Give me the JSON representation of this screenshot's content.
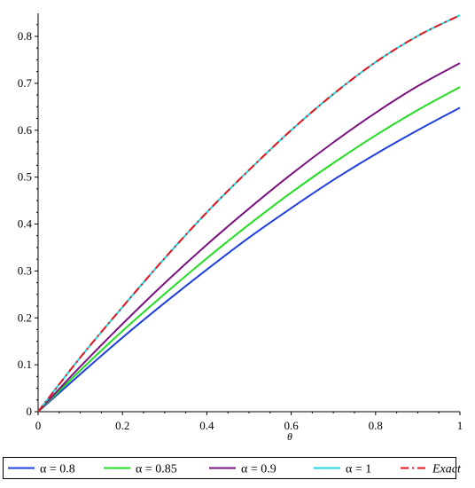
{
  "chart_data": {
    "type": "line",
    "xlabel": "θ",
    "ylabel": "",
    "xlim": [
      0,
      1
    ],
    "ylim": [
      0,
      0.85
    ],
    "x_ticks": [
      "0",
      "0.2",
      "0.4",
      "0.6",
      "0.8",
      "1"
    ],
    "y_ticks": [
      "0",
      "0.1",
      "0.2",
      "0.3",
      "0.4",
      "0.5",
      "0.6",
      "0.7",
      "0.8"
    ],
    "grid": false,
    "legend_position": "bottom",
    "x": [
      0,
      0.1,
      0.2,
      0.3,
      0.4,
      0.5,
      0.6,
      0.7,
      0.8,
      0.9,
      1.0
    ],
    "series": [
      {
        "name": "α = 0.8",
        "color": "#1f3fdf",
        "dash": "solid",
        "italic": false,
        "values": [
          0,
          0.08,
          0.158,
          0.232,
          0.303,
          0.371,
          0.434,
          0.494,
          0.549,
          0.6,
          0.648
        ]
      },
      {
        "name": "α = 0.85",
        "color": "#22dd22",
        "dash": "solid",
        "italic": false,
        "values": [
          0,
          0.088,
          0.172,
          0.251,
          0.327,
          0.399,
          0.467,
          0.53,
          0.589,
          0.643,
          0.692
        ]
      },
      {
        "name": "α = 0.9",
        "color": "#7a1380",
        "dash": "solid",
        "italic": false,
        "values": [
          0,
          0.096,
          0.187,
          0.274,
          0.356,
          0.433,
          0.506,
          0.574,
          0.637,
          0.694,
          0.743
        ]
      },
      {
        "name": "α = 1",
        "color": "#1ed6dc",
        "dash": "solid",
        "italic": false,
        "values": [
          0,
          0.1155,
          0.223,
          0.327,
          0.425,
          0.515,
          0.6,
          0.677,
          0.745,
          0.801,
          0.845
        ]
      },
      {
        "name": "Exact",
        "color": "#e5141e",
        "dash": "dashdot",
        "italic": true,
        "values": [
          0,
          0.1155,
          0.223,
          0.327,
          0.425,
          0.515,
          0.6,
          0.677,
          0.745,
          0.801,
          0.845
        ]
      }
    ]
  }
}
